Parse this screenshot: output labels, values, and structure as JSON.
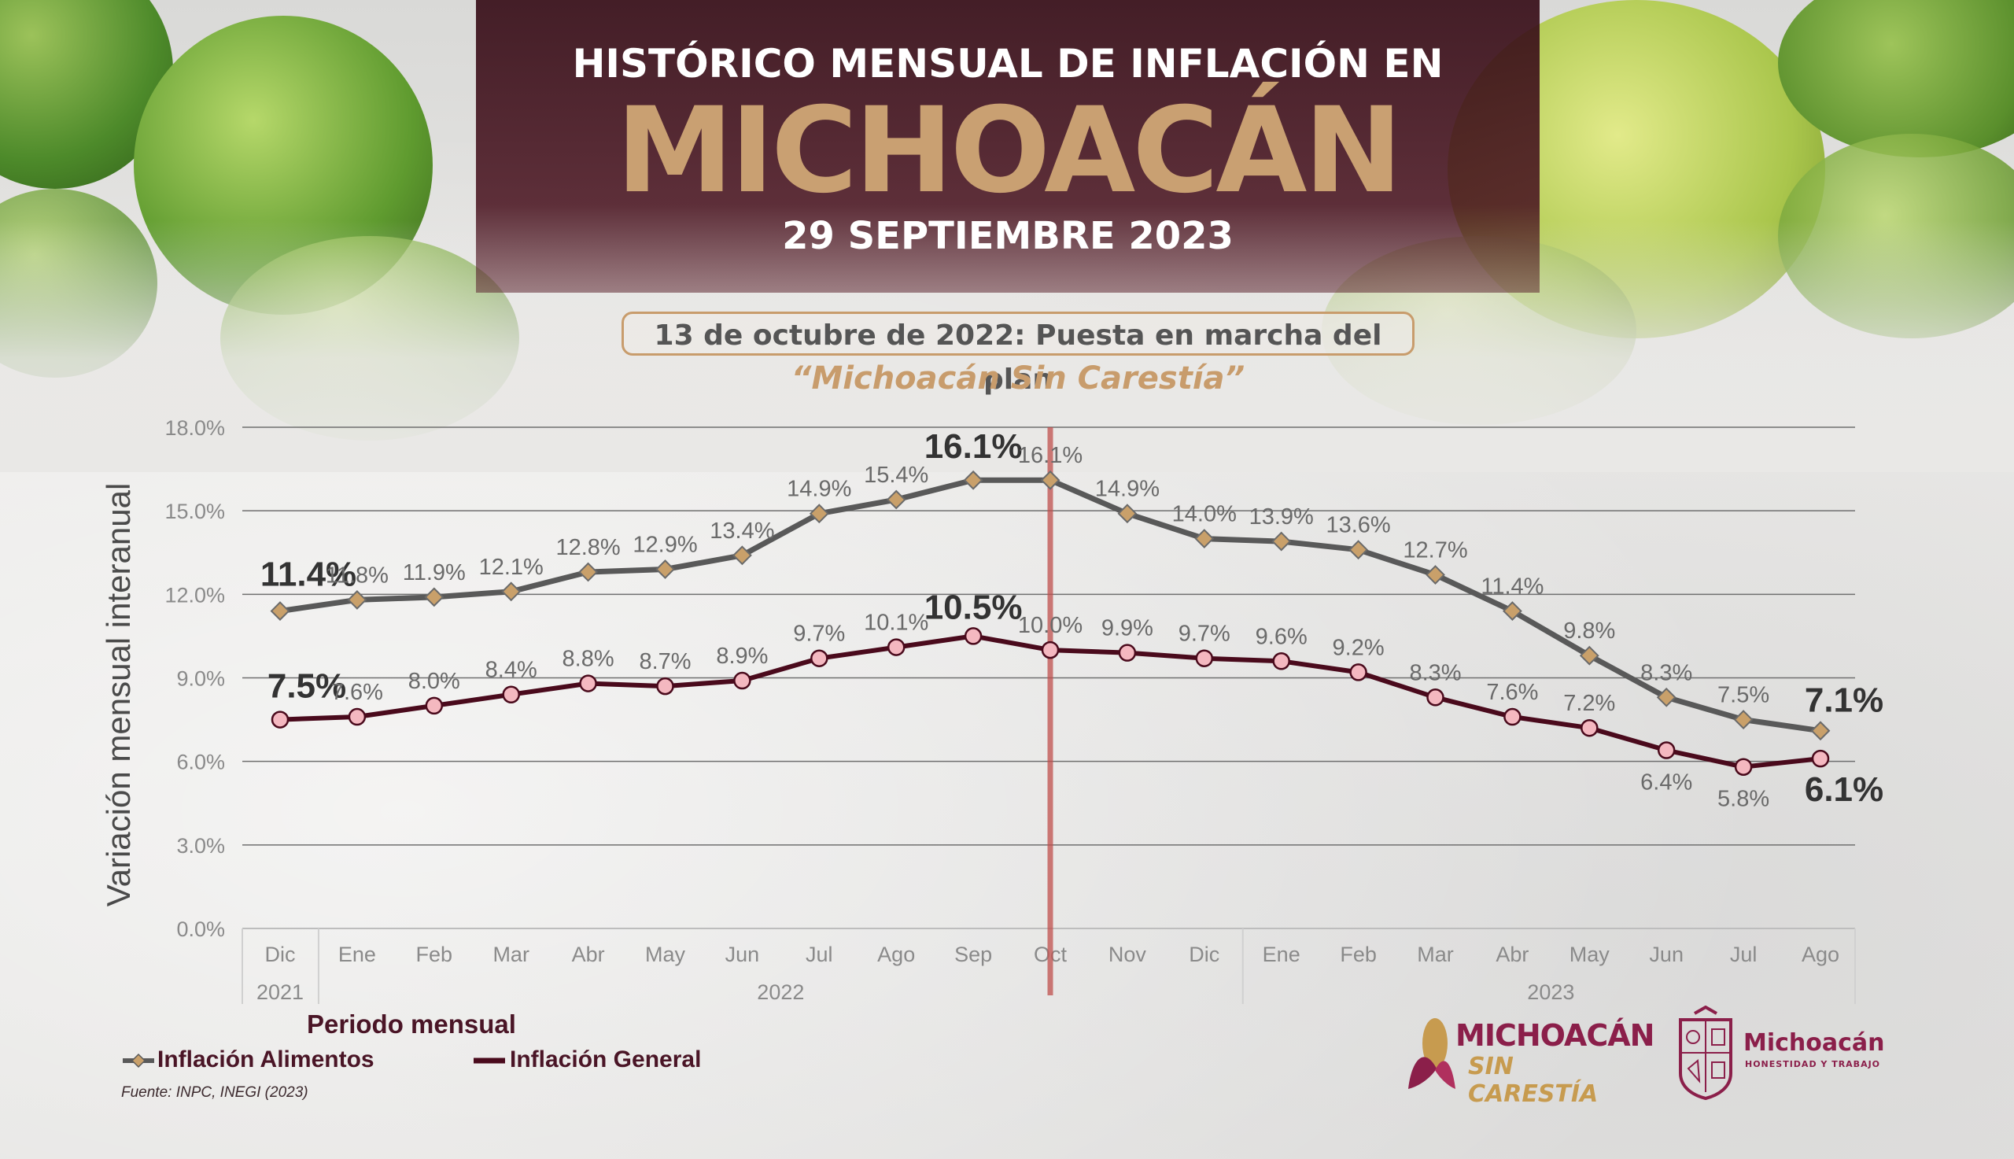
{
  "header": {
    "title_line1": "HISTÓRICO MENSUAL DE INFLACIÓN EN",
    "title_line2": "MICHOACÁN",
    "date": "29 SEPTIEMBRE 2023"
  },
  "plan": {
    "box_text": "13 de octubre de 2022: Puesta en marcha del plan",
    "quote": "“Michoacán Sin Carestía”"
  },
  "colors": {
    "alimentos_line": "#595959",
    "alimentos_marker": "#c9a06a",
    "general_line": "#4a0a1c",
    "general_marker": "#f4b8c0",
    "event_line": "#c0504d",
    "accent_gold": "#c9a072",
    "brand_wine": "#8b1f4a"
  },
  "chart_data": {
    "type": "line",
    "ylabel": "Variación mensual interanual",
    "xlabel": "Periodo mensual",
    "ylim": [
      0,
      18
    ],
    "yticks": [
      "0.0%",
      "3.0%",
      "6.0%",
      "9.0%",
      "12.0%",
      "15.0%",
      "18.0%"
    ],
    "ytick_values": [
      0,
      3,
      6,
      9,
      12,
      15,
      18
    ],
    "categories": [
      "Dic",
      "Ene",
      "Feb",
      "Mar",
      "Abr",
      "May",
      "Jun",
      "Jul",
      "Ago",
      "Sep",
      "Oct",
      "Nov",
      "Dic",
      "Ene",
      "Feb",
      "Mar",
      "Abr",
      "May",
      "Jun",
      "Jul",
      "Ago"
    ],
    "year_groups": [
      {
        "label": "2021",
        "start": 0,
        "end": 0
      },
      {
        "label": "2022",
        "start": 1,
        "end": 12
      },
      {
        "label": "2023",
        "start": 13,
        "end": 20
      }
    ],
    "event_category_index": 10,
    "grid": true,
    "legend_position": "bottom-left",
    "series": [
      {
        "name": "Inflación Alimentos",
        "marker": "diamond",
        "values": [
          11.4,
          11.8,
          11.9,
          12.1,
          12.8,
          12.9,
          13.4,
          14.9,
          15.4,
          16.1,
          16.1,
          14.9,
          14.0,
          13.9,
          13.6,
          12.7,
          11.4,
          9.8,
          8.3,
          7.5,
          7.1
        ],
        "labels": [
          "11.4%",
          "11.8%",
          "11.9%",
          "12.1%",
          "12.8%",
          "12.9%",
          "13.4%",
          "14.9%",
          "15.4%",
          "16.1%",
          "16.1%",
          "14.9%",
          "14.0%",
          "13.9%",
          "13.6%",
          "12.7%",
          "11.4%",
          "9.8%",
          "8.3%",
          "7.5%",
          "7.1%"
        ],
        "highlight_indices": [
          0,
          9,
          20
        ]
      },
      {
        "name": "Inflación General",
        "marker": "circle",
        "values": [
          7.5,
          7.6,
          8.0,
          8.4,
          8.8,
          8.7,
          8.9,
          9.7,
          10.1,
          10.5,
          10.0,
          9.9,
          9.7,
          9.6,
          9.2,
          8.3,
          7.6,
          7.2,
          6.4,
          5.8,
          6.1
        ],
        "labels": [
          "7.5%",
          "7.6%",
          "8.0%",
          "8.4%",
          "8.8%",
          "8.7%",
          "8.9%",
          "9.7%",
          "10.1%",
          "10.5%",
          "10.0%",
          "9.9%",
          "9.7%",
          "9.6%",
          "9.2%",
          "8.3%",
          "7.6%",
          "7.2%",
          "6.4%",
          "5.8%",
          "6.1%"
        ],
        "highlight_indices": [
          0,
          9,
          20
        ]
      }
    ]
  },
  "legend": {
    "alimentos": "Inflación Alimentos",
    "general": "Inflación General"
  },
  "source": "Fuente: INPC, INEGI (2023)",
  "logos": {
    "msc_line1": "MICHOACÁN",
    "msc_line2": "SIN CARESTÍA",
    "gov_name": "Michoacán",
    "gov_motto": "HONESTIDAD Y TRABAJO"
  }
}
